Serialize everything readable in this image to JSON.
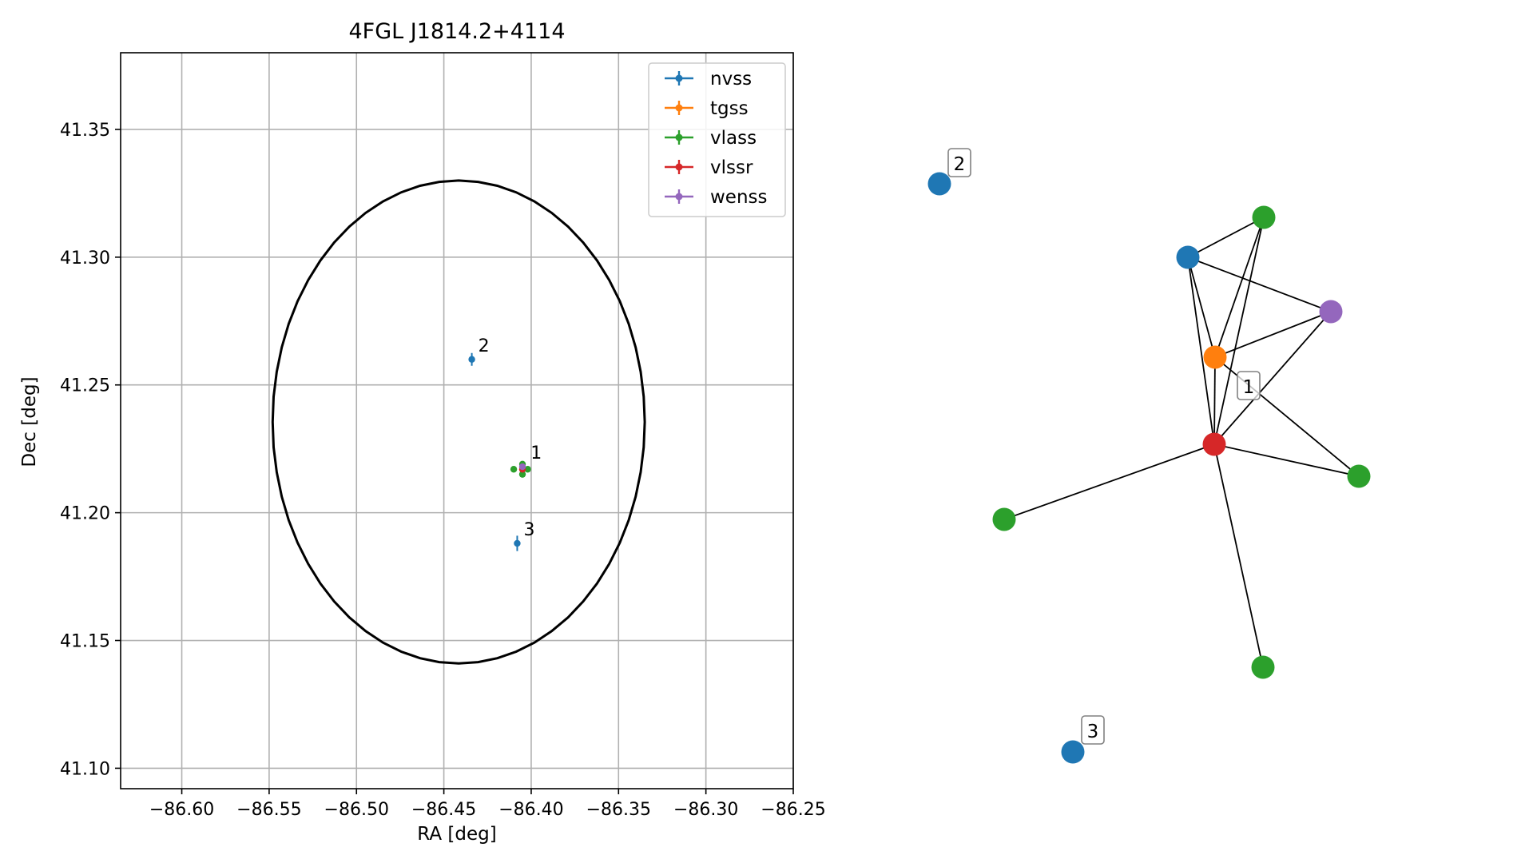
{
  "chart_data": [
    {
      "type": "scatter",
      "title": "4FGL J1814.2+4114",
      "xlabel": "RA [deg]",
      "ylabel": "Dec [deg]",
      "xlim": [
        -86.635,
        -86.25
      ],
      "ylim": [
        41.092,
        41.38
      ],
      "xticks": [
        -86.6,
        -86.55,
        -86.5,
        -86.45,
        -86.4,
        -86.35,
        -86.3,
        -86.25
      ],
      "xtick_labels": [
        "−86.60",
        "−86.55",
        "−86.50",
        "−86.45",
        "−86.40",
        "−86.35",
        "−86.30",
        "−86.25"
      ],
      "yticks": [
        41.1,
        41.15,
        41.2,
        41.25,
        41.3,
        41.35
      ],
      "ytick_labels": [
        "41.10",
        "41.15",
        "41.20",
        "41.25",
        "41.30",
        "41.35"
      ],
      "grid": true,
      "legend_position": "top-right",
      "series": [
        {
          "name": "nvss",
          "color": "#1f77b4",
          "points": [
            {
              "x": -86.434,
              "y": 41.26,
              "xerr": 0.001,
              "yerr": 0.0025
            },
            {
              "x": -86.408,
              "y": 41.188,
              "xerr": 0.001,
              "yerr": 0.003
            }
          ]
        },
        {
          "name": "tgss",
          "color": "#ff7f0e",
          "points": [
            {
              "x": -86.405,
              "y": 41.217,
              "xerr": 0.0005,
              "yerr": 0.0008
            }
          ]
        },
        {
          "name": "vlass",
          "color": "#2ca02c",
          "points": [
            {
              "x": -86.41,
              "y": 41.217,
              "xerr": 0.0003,
              "yerr": 0.0003
            },
            {
              "x": -86.405,
              "y": 41.215,
              "xerr": 0.0003,
              "yerr": 0.0003
            },
            {
              "x": -86.402,
              "y": 41.217,
              "xerr": 0.0003,
              "yerr": 0.0003
            },
            {
              "x": -86.405,
              "y": 41.219,
              "xerr": 0.0003,
              "yerr": 0.0003
            }
          ]
        },
        {
          "name": "vlssr",
          "color": "#d62728",
          "points": [
            {
              "x": -86.405,
              "y": 41.217,
              "xerr": 0.0006,
              "yerr": 0.0008
            }
          ]
        },
        {
          "name": "wenss",
          "color": "#9467bd",
          "points": [
            {
              "x": -86.405,
              "y": 41.218,
              "xerr": 0.0008,
              "yerr": 0.001
            }
          ]
        }
      ],
      "point_labels": [
        {
          "text": "2",
          "x": -86.434,
          "y": 41.26
        },
        {
          "text": "1",
          "x": -86.404,
          "y": 41.218
        },
        {
          "text": "3",
          "x": -86.408,
          "y": 41.188
        }
      ],
      "ellipse": {
        "center_ra": -86.4415,
        "center_dec": 41.2355,
        "semi_ra": 0.1065,
        "semi_dec": 0.0945,
        "color": "#000000"
      }
    },
    {
      "type": "network",
      "nodes": [
        {
          "id": "n1",
          "catalog": "nvss",
          "color": "#1f77b4"
        },
        {
          "id": "n2",
          "catalog": "nvss",
          "color": "#1f77b4"
        },
        {
          "id": "n3",
          "catalog": "nvss",
          "color": "#1f77b4"
        },
        {
          "id": "t1",
          "catalog": "tgss",
          "color": "#ff7f0e"
        },
        {
          "id": "r1",
          "catalog": "vlssr",
          "color": "#d62728"
        },
        {
          "id": "w1",
          "catalog": "wenss",
          "color": "#9467bd"
        },
        {
          "id": "g1",
          "catalog": "vlass",
          "color": "#2ca02c"
        },
        {
          "id": "g2",
          "catalog": "vlass",
          "color": "#2ca02c"
        },
        {
          "id": "g3",
          "catalog": "vlass",
          "color": "#2ca02c"
        },
        {
          "id": "g4",
          "catalog": "vlass",
          "color": "#2ca02c"
        }
      ],
      "edges": [
        [
          "n1",
          "g1"
        ],
        [
          "n1",
          "w1"
        ],
        [
          "n1",
          "t1"
        ],
        [
          "n1",
          "r1"
        ],
        [
          "g1",
          "t1"
        ],
        [
          "g1",
          "r1"
        ],
        [
          "t1",
          "w1"
        ],
        [
          "t1",
          "g3"
        ],
        [
          "t1",
          "r1"
        ],
        [
          "r1",
          "w1"
        ],
        [
          "r1",
          "g2"
        ],
        [
          "r1",
          "g3"
        ],
        [
          "r1",
          "g4"
        ]
      ],
      "group_labels": [
        {
          "text": "2",
          "node": "n2"
        },
        {
          "text": "1",
          "node": "t1"
        },
        {
          "text": "3",
          "node": "n3"
        }
      ]
    }
  ]
}
